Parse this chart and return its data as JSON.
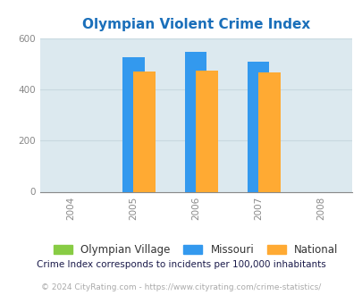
{
  "title": "Olympian Violent Crime Index",
  "title_color": "#1a6fba",
  "years": [
    2004,
    2005,
    2006,
    2007,
    2008
  ],
  "bar_years": [
    2005,
    2006,
    2007
  ],
  "olympian_village": [
    0,
    0,
    0
  ],
  "missouri": [
    525,
    547,
    507
  ],
  "national": [
    469,
    474,
    466
  ],
  "bar_width": 0.35,
  "color_village": "#88cc44",
  "color_missouri": "#3399ee",
  "color_national": "#ffaa33",
  "ylim": [
    0,
    600
  ],
  "yticks": [
    0,
    200,
    400,
    600
  ],
  "background_color": "#dce9ef",
  "grid_color": "#c8d8df",
  "footnote1": "Crime Index corresponds to incidents per 100,000 inhabitants",
  "footnote2": "© 2024 CityRating.com - https://www.cityrating.com/crime-statistics/",
  "legend_labels": [
    "Olympian Village",
    "Missouri",
    "National"
  ]
}
